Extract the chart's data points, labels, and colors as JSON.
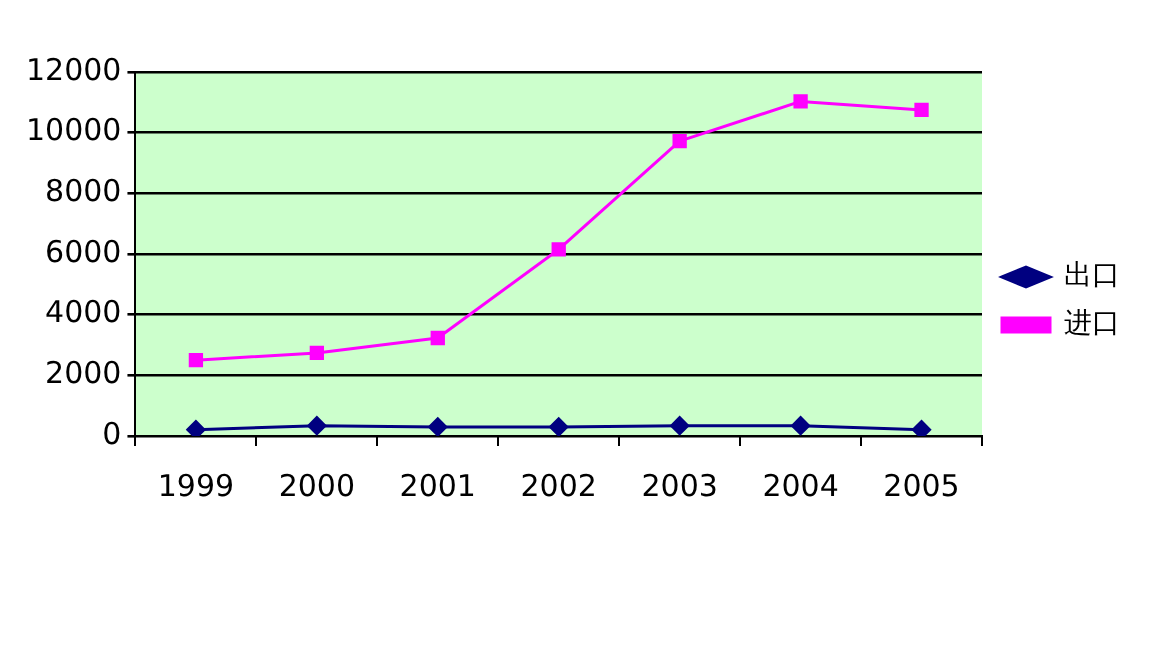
{
  "chart_data": {
    "type": "line",
    "categories": [
      "1999",
      "2000",
      "2001",
      "2002",
      "2003",
      "2004",
      "2005"
    ],
    "series": [
      {
        "name": "出口",
        "color": "#000080",
        "marker": "diamond",
        "values": [
          210,
          340,
          300,
          300,
          340,
          340,
          210
        ]
      },
      {
        "name": "进口",
        "color": "#ff00ff",
        "marker": "square",
        "values": [
          2500,
          2740,
          3230,
          6150,
          9720,
          11030,
          10750
        ]
      }
    ],
    "ylim": [
      0,
      12000
    ],
    "yticks": [
      0,
      2000,
      4000,
      6000,
      8000,
      10000,
      12000
    ],
    "grid": "y",
    "legend": "right"
  }
}
